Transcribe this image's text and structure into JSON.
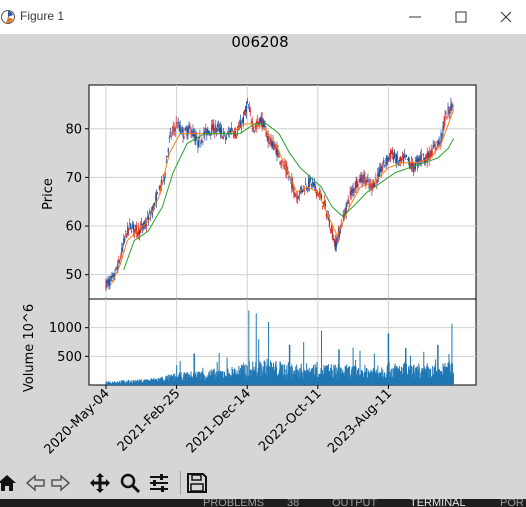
{
  "window": {
    "title": "Figure 1",
    "controls": [
      "minimize",
      "maximize",
      "close"
    ]
  },
  "figure": {
    "title": "006208"
  },
  "chart_data": [
    {
      "type": "line",
      "title": "006208",
      "ylabel": "Price",
      "ylim": [
        45,
        89
      ],
      "yticks": [
        50,
        60,
        70,
        80
      ],
      "xlim": [
        0,
        1000
      ],
      "grid": true,
      "series": [
        {
          "description": "daily candlesticks / close",
          "color": "#1f3f9a",
          "values": [
            [
              0,
              48
            ],
            [
              20,
              49
            ],
            [
              40,
              53
            ],
            [
              55,
              58
            ],
            [
              70,
              60
            ],
            [
              90,
              59
            ],
            [
              110,
              60
            ],
            [
              130,
              63
            ],
            [
              150,
              67
            ],
            [
              165,
              70
            ],
            [
              180,
              78
            ],
            [
              200,
              81
            ],
            [
              220,
              79
            ],
            [
              240,
              80
            ],
            [
              260,
              77
            ],
            [
              280,
              79
            ],
            [
              300,
              80
            ],
            [
              320,
              80
            ],
            [
              340,
              78
            ],
            [
              355,
              80
            ],
            [
              370,
              79
            ],
            [
              390,
              82
            ],
            [
              400,
              85
            ],
            [
              420,
              80
            ],
            [
              440,
              82
            ],
            [
              460,
              78
            ],
            [
              480,
              76
            ],
            [
              500,
              73
            ],
            [
              520,
              70
            ],
            [
              540,
              66
            ],
            [
              560,
              68
            ],
            [
              580,
              69
            ],
            [
              600,
              67
            ],
            [
              620,
              64
            ],
            [
              640,
              59
            ],
            [
              650,
              56
            ],
            [
              670,
              61
            ],
            [
              690,
              66
            ],
            [
              710,
              69
            ],
            [
              730,
              70
            ],
            [
              750,
              68
            ],
            [
              770,
              70
            ],
            [
              790,
              73
            ],
            [
              810,
              75
            ],
            [
              830,
              73
            ],
            [
              850,
              74
            ],
            [
              870,
              72
            ],
            [
              890,
              74
            ],
            [
              910,
              74
            ],
            [
              930,
              76
            ],
            [
              950,
              78
            ],
            [
              960,
              82
            ],
            [
              975,
              84
            ],
            [
              985,
              86
            ]
          ]
        },
        {
          "description": "short moving average",
          "color": "#ff7f0e",
          "values": [
            [
              15,
              48
            ],
            [
              40,
              52
            ],
            [
              60,
              57
            ],
            [
              90,
              59
            ],
            [
              120,
              61
            ],
            [
              150,
              66
            ],
            [
              180,
              75
            ],
            [
              210,
              79
            ],
            [
              250,
              79
            ],
            [
              300,
              79
            ],
            [
              350,
              79
            ],
            [
              395,
              81
            ],
            [
              420,
              81
            ],
            [
              450,
              80
            ],
            [
              480,
              77
            ],
            [
              510,
              72
            ],
            [
              540,
              67
            ],
            [
              570,
              68
            ],
            [
              600,
              67
            ],
            [
              630,
              62
            ],
            [
              655,
              58
            ],
            [
              690,
              64
            ],
            [
              720,
              68
            ],
            [
              760,
              69
            ],
            [
              800,
              72
            ],
            [
              840,
              73
            ],
            [
              880,
              73
            ],
            [
              920,
              74
            ],
            [
              950,
              77
            ],
            [
              985,
              84
            ]
          ]
        },
        {
          "description": "long moving average",
          "color": "#2ca02c",
          "values": [
            [
              50,
              51
            ],
            [
              80,
              57
            ],
            [
              120,
              59
            ],
            [
              160,
              64
            ],
            [
              190,
              71
            ],
            [
              230,
              77
            ],
            [
              280,
              79
            ],
            [
              330,
              79
            ],
            [
              380,
              79
            ],
            [
              420,
              81
            ],
            [
              455,
              81
            ],
            [
              490,
              79
            ],
            [
              520,
              75
            ],
            [
              550,
              72
            ],
            [
              580,
              70
            ],
            [
              610,
              68
            ],
            [
              640,
              64
            ],
            [
              670,
              62
            ],
            [
              700,
              64
            ],
            [
              740,
              67
            ],
            [
              780,
              69
            ],
            [
              820,
              71
            ],
            [
              860,
              72
            ],
            [
              900,
              73
            ],
            [
              940,
              74
            ],
            [
              970,
              76
            ],
            [
              985,
              78
            ]
          ]
        }
      ]
    },
    {
      "type": "bar",
      "ylabel": "Volume  10^6",
      "ylim": [
        0,
        1500
      ],
      "yticks": [
        500,
        1000
      ],
      "xlim": [
        0,
        1000
      ],
      "xticks": [
        "2020-May-04",
        "2021-Feb-25",
        "2021-Dec-14",
        "2022-Oct-11",
        "2023-Aug-11"
      ],
      "xtick_positions": [
        0,
        200,
        400,
        600,
        800
      ],
      "color": "#1f77b4",
      "series": [
        {
          "description": "volume envelope",
          "values": [
            [
              0,
              60
            ],
            [
              50,
              70
            ],
            [
              100,
              80
            ],
            [
              150,
              120
            ],
            [
              200,
              170
            ],
            [
              250,
              200
            ],
            [
              300,
              230
            ],
            [
              350,
              250
            ],
            [
              400,
              330
            ],
            [
              450,
              380
            ],
            [
              500,
              330
            ],
            [
              550,
              300
            ],
            [
              600,
              320
            ],
            [
              650,
              300
            ],
            [
              700,
              280
            ],
            [
              750,
              280
            ],
            [
              800,
              320
            ],
            [
              850,
              300
            ],
            [
              900,
              270
            ],
            [
              950,
              300
            ],
            [
              985,
              350
            ]
          ],
          "spikes": [
            [
              210,
              420
            ],
            [
              250,
              550
            ],
            [
              320,
              560
            ],
            [
              405,
              1300
            ],
            [
              425,
              1250
            ],
            [
              460,
              1100
            ],
            [
              520,
              700
            ],
            [
              560,
              750
            ],
            [
              610,
              950
            ],
            [
              660,
              620
            ],
            [
              700,
              650
            ],
            [
              760,
              550
            ],
            [
              800,
              900
            ],
            [
              850,
              650
            ],
            [
              900,
              580
            ],
            [
              940,
              700
            ],
            [
              980,
              1070
            ]
          ]
        }
      ]
    }
  ],
  "toolbar": {
    "tools": [
      "home-icon",
      "back-arrow-icon",
      "forward-arrow-icon",
      "pan-icon",
      "zoom-icon",
      "subplots-icon",
      "save-icon"
    ]
  },
  "vscode_panel": {
    "tabs": [
      {
        "label": "PROBLEMS",
        "active": false
      },
      {
        "label": "38",
        "active": false
      },
      {
        "label": "OUTPUT",
        "active": false
      },
      {
        "label": "TERMINAL",
        "active": true
      },
      {
        "label": "POR",
        "active": false
      }
    ]
  }
}
